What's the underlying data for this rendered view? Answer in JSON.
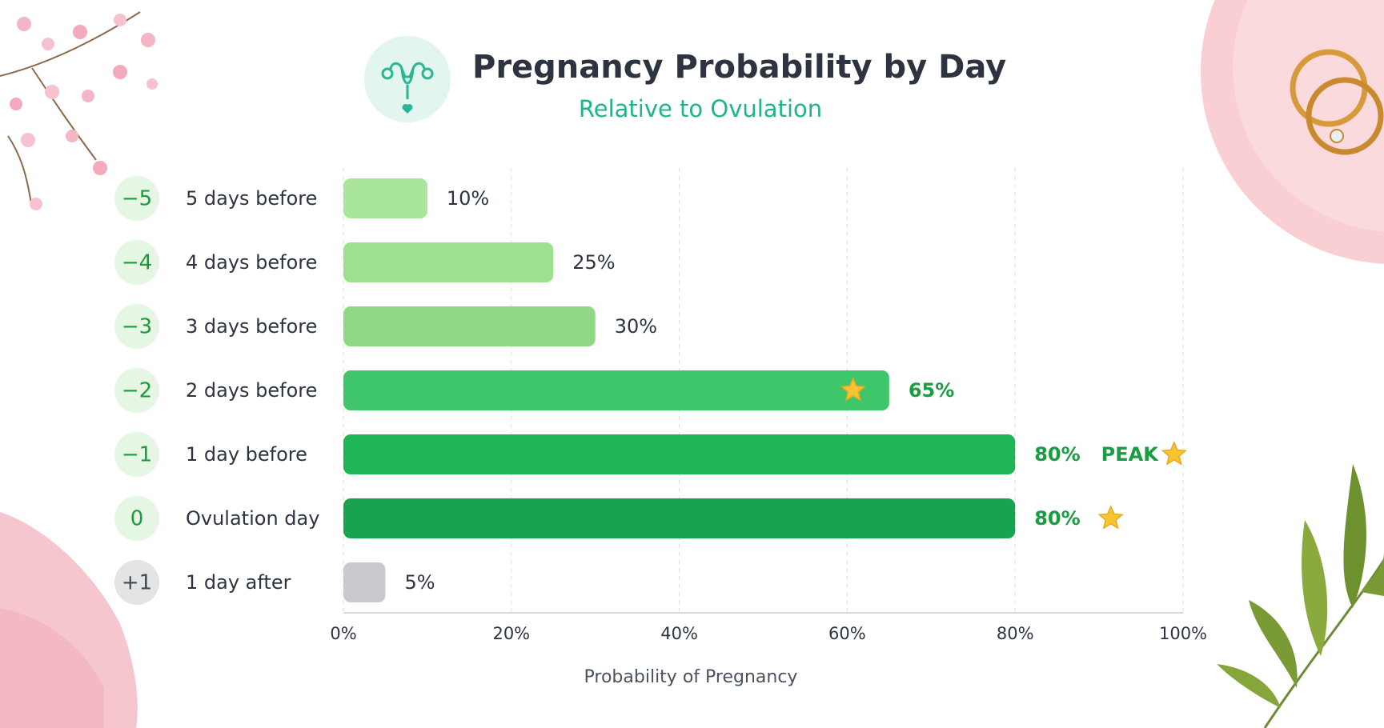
{
  "chart_data": {
    "type": "bar",
    "orientation": "horizontal",
    "title": "Pregnancy Probability by Day",
    "subtitle": "Relative to Ovulation",
    "x_label": "Probability of Pregnancy",
    "categories": [
      "5 days before",
      "4 days before",
      "3 days before",
      "2 days before",
      "1 day before",
      "Ovulation day",
      "1 day after"
    ],
    "day_offsets": [
      "−5",
      "−4",
      "−3",
      "−2",
      "−1",
      "0",
      "+1"
    ],
    "values": [
      10,
      25,
      30,
      65,
      80,
      80,
      5
    ],
    "value_labels": [
      "10%",
      "25%",
      "30%",
      "65%",
      "80%",
      "80%",
      "5%"
    ],
    "colors": [
      "#a9e59b",
      "#9de08f",
      "#8fd985",
      "#3fc56a",
      "#1db556",
      "#17a34f",
      "#c9cacd"
    ],
    "value_label_colors": [
      "#2d3440",
      "#2d3440",
      "#2d3440",
      "#1a9c43",
      "#1a9c43",
      "#1a9c43",
      "#2d3440"
    ],
    "badge_colors": [
      "#e5f6e4",
      "#e5f6e4",
      "#e5f6e4",
      "#e5f6e4",
      "#e5f6e4",
      "#e5f6e4",
      "#e3e4e6"
    ],
    "badge_text_colors": [
      "#1d9a3a",
      "#1d9a3a",
      "#1d9a3a",
      "#1d9a3a",
      "#1d9a3a",
      "#1d9a3a",
      "#444a52"
    ],
    "annotations": [
      {
        "text": "PEAK",
        "category": "1 day before"
      }
    ],
    "xlim": [
      0,
      100
    ],
    "xticks": [
      {
        "value": 0,
        "label": "0%"
      },
      {
        "value": 20,
        "label": "20%"
      },
      {
        "value": 40,
        "label": "40%"
      },
      {
        "value": 60,
        "label": "60%"
      },
      {
        "value": 80,
        "label": "80%"
      },
      {
        "value": 100,
        "label": "100%"
      }
    ],
    "grid": true
  }
}
